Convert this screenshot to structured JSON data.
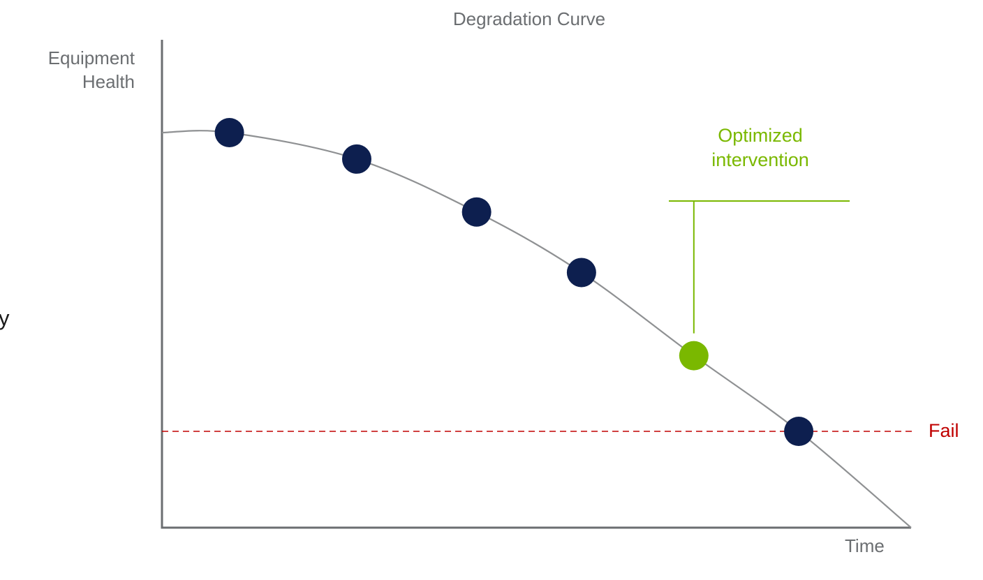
{
  "title": "Degradation Curve",
  "ylabel_lines": [
    "Equipment",
    "Health"
  ],
  "xlabel": "Time",
  "fail_label": "Fail",
  "intervention_lines": [
    "Optimized",
    "intervention"
  ],
  "edge_text": "y",
  "colors": {
    "axis": "#6b6e71",
    "curve": "#8f9193",
    "point": "#0d1f4f",
    "intervention": "#7ab800",
    "fail": "#c00000",
    "text": "#6b6e71"
  },
  "chart_data": {
    "type": "line",
    "xlabel": "Time",
    "ylabel": "Equipment Health",
    "xlim": [
      0,
      100
    ],
    "ylim": [
      0,
      100
    ],
    "curve": {
      "x": [
        0,
        9,
        26,
        42,
        56,
        71,
        85,
        100
      ],
      "y": [
        100,
        100,
        93,
        79,
        63,
        41,
        21,
        0
      ]
    },
    "points": [
      {
        "x": 9,
        "y": 100,
        "highlight": false
      },
      {
        "x": 26,
        "y": 93,
        "highlight": false
      },
      {
        "x": 42,
        "y": 79,
        "highlight": false
      },
      {
        "x": 56,
        "y": 63,
        "highlight": false
      },
      {
        "x": 71,
        "y": 41,
        "highlight": true
      },
      {
        "x": 85,
        "y": 21,
        "highlight": false
      }
    ],
    "fail_threshold": 21,
    "annotation": "Optimized intervention",
    "annotation_point_index": 4
  }
}
